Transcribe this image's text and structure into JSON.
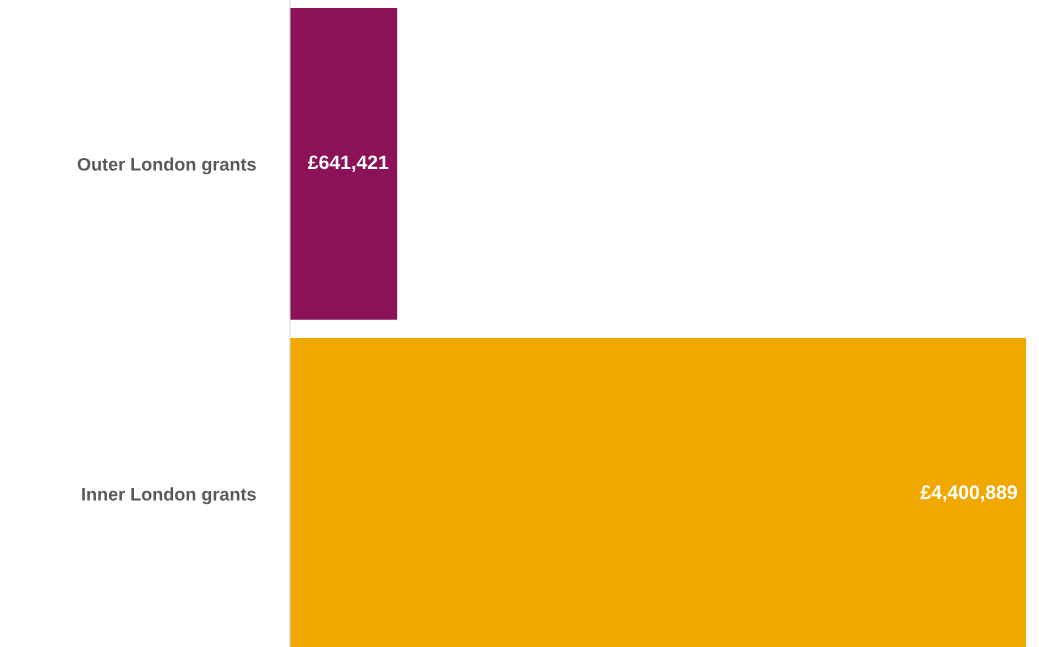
{
  "chart_data": {
    "type": "bar",
    "orientation": "horizontal",
    "categories": [
      "Outer London grants",
      "Inner London grants"
    ],
    "values": [
      641421,
      4400889
    ],
    "colors": [
      "#8b1259",
      "#f0a800"
    ],
    "value_labels": [
      "£641,421",
      "£4,400,889"
    ],
    "grid": false,
    "legend": false,
    "tick_labels": "y"
  }
}
